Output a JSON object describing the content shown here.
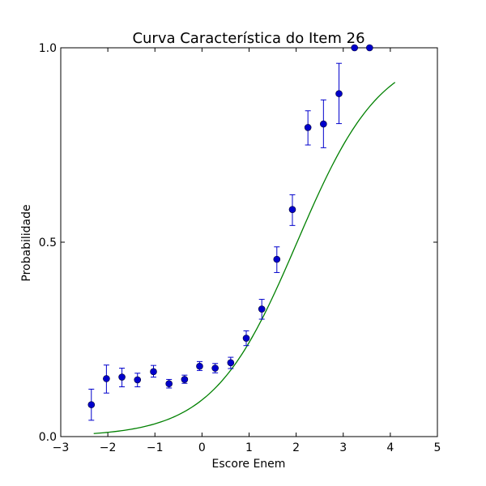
{
  "chart_data": {
    "type": "scatter",
    "title": "Curva Característica do Item 26",
    "xlabel": "Escore Enem",
    "ylabel": "Probabilidade",
    "xlim": [
      -3,
      5
    ],
    "ylim": [
      0.0,
      1.0
    ],
    "xticks": [
      -3,
      -2,
      -1,
      0,
      1,
      2,
      3,
      4,
      5
    ],
    "xtick_labels": [
      "−3",
      "−2",
      "−1",
      "0",
      "1",
      "2",
      "3",
      "4",
      "5"
    ],
    "yticks": [
      0.0,
      0.5,
      1.0
    ],
    "ytick_labels": [
      "0.0",
      "0.5",
      "1.0"
    ],
    "grid": false,
    "colors": {
      "points": "#0000cc",
      "curve": "#008000"
    },
    "points": [
      {
        "x": -2.35,
        "y": 0.082,
        "err_low": 0.042,
        "err_high": 0.122
      },
      {
        "x": -2.03,
        "y": 0.149,
        "err_low": 0.112,
        "err_high": 0.184
      },
      {
        "x": -1.7,
        "y": 0.153,
        "err_low": 0.128,
        "err_high": 0.176
      },
      {
        "x": -1.37,
        "y": 0.146,
        "err_low": 0.128,
        "err_high": 0.163
      },
      {
        "x": -1.03,
        "y": 0.167,
        "err_low": 0.153,
        "err_high": 0.183
      },
      {
        "x": -0.7,
        "y": 0.136,
        "err_low": 0.125,
        "err_high": 0.147
      },
      {
        "x": -0.37,
        "y": 0.147,
        "err_low": 0.137,
        "err_high": 0.158
      },
      {
        "x": -0.05,
        "y": 0.181,
        "err_low": 0.17,
        "err_high": 0.193
      },
      {
        "x": 0.28,
        "y": 0.176,
        "err_low": 0.164,
        "err_high": 0.188
      },
      {
        "x": 0.61,
        "y": 0.19,
        "err_low": 0.175,
        "err_high": 0.204
      },
      {
        "x": 0.94,
        "y": 0.253,
        "err_low": 0.234,
        "err_high": 0.272
      },
      {
        "x": 1.27,
        "y": 0.328,
        "err_low": 0.302,
        "err_high": 0.353
      },
      {
        "x": 1.59,
        "y": 0.456,
        "err_low": 0.422,
        "err_high": 0.488
      },
      {
        "x": 1.92,
        "y": 0.584,
        "err_low": 0.543,
        "err_high": 0.622
      },
      {
        "x": 2.25,
        "y": 0.795,
        "err_low": 0.75,
        "err_high": 0.838
      },
      {
        "x": 2.58,
        "y": 0.804,
        "err_low": 0.743,
        "err_high": 0.866
      },
      {
        "x": 2.91,
        "y": 0.882,
        "err_low": 0.805,
        "err_high": 0.96
      },
      {
        "x": 3.24,
        "y": 1.0,
        "err_low": 1.0,
        "err_high": 1.0
      },
      {
        "x": 3.56,
        "y": 1.0,
        "err_low": 1.0,
        "err_high": 1.0
      }
    ],
    "curve": {
      "x_range": [
        -2.3,
        4.1
      ],
      "a": 1.12,
      "b": 2.02,
      "c": 0.0
    }
  }
}
